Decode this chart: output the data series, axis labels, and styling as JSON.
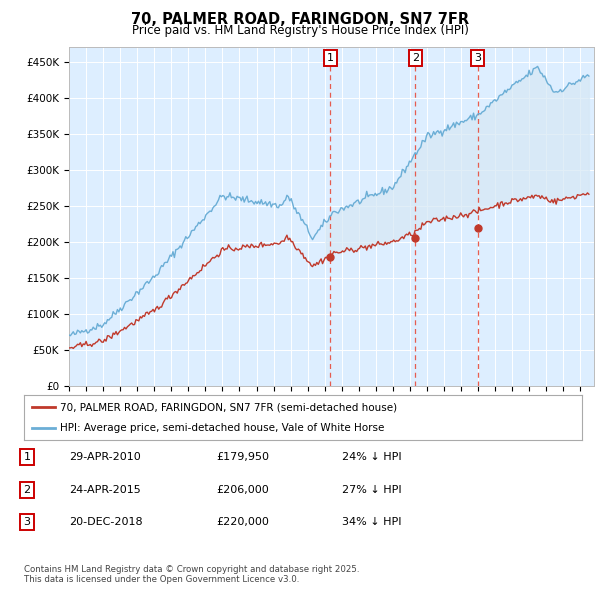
{
  "title": "70, PALMER ROAD, FARINGDON, SN7 7FR",
  "subtitle": "Price paid vs. HM Land Registry's House Price Index (HPI)",
  "ylim": [
    0,
    470000
  ],
  "yticks": [
    0,
    50000,
    100000,
    150000,
    200000,
    250000,
    300000,
    350000,
    400000,
    450000
  ],
  "ytick_labels": [
    "£0",
    "£50K",
    "£100K",
    "£150K",
    "£200K",
    "£250K",
    "£300K",
    "£350K",
    "£400K",
    "£450K"
  ],
  "hpi_color": "#6baed6",
  "price_color": "#c0392b",
  "dashed_color": "#e74c3c",
  "fill_color": "#d6e8f5",
  "sale_year_floats": [
    2010.33,
    2015.32,
    2018.97
  ],
  "sale_prices": [
    179950,
    206000,
    220000
  ],
  "sale_labels": [
    "1",
    "2",
    "3"
  ],
  "legend_label_red": "70, PALMER ROAD, FARINGDON, SN7 7FR (semi-detached house)",
  "legend_label_blue": "HPI: Average price, semi-detached house, Vale of White Horse",
  "table_data": [
    [
      "1",
      "29-APR-2010",
      "£179,950",
      "24% ↓ HPI"
    ],
    [
      "2",
      "24-APR-2015",
      "£206,000",
      "27% ↓ HPI"
    ],
    [
      "3",
      "20-DEC-2018",
      "£220,000",
      "34% ↓ HPI"
    ]
  ],
  "footnote": "Contains HM Land Registry data © Crown copyright and database right 2025.\nThis data is licensed under the Open Government Licence v3.0.",
  "background_color": "#ddeeff"
}
